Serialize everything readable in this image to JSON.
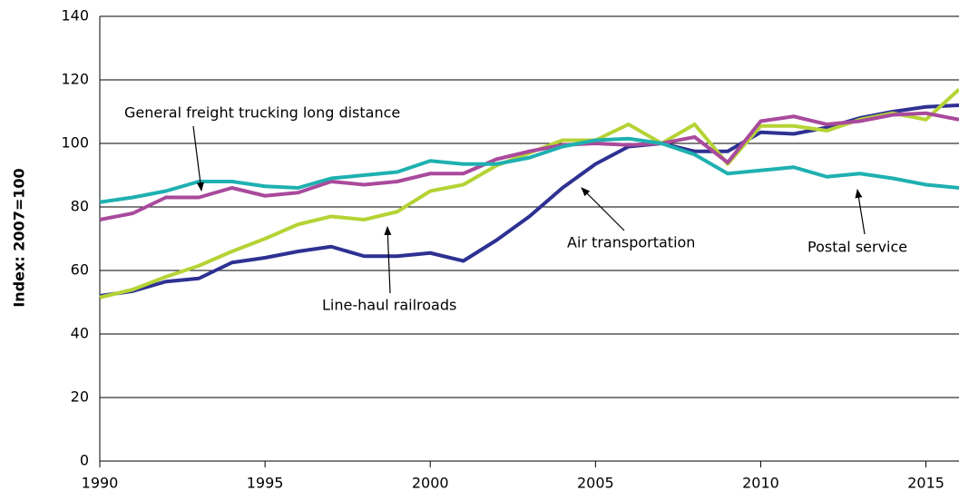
{
  "chart_data": {
    "type": "line",
    "y_label": "Index:  2007=100",
    "x": [
      1990,
      1991,
      1992,
      1993,
      1994,
      1995,
      1996,
      1997,
      1998,
      1999,
      2000,
      2001,
      2002,
      2003,
      2004,
      2005,
      2006,
      2007,
      2008,
      2009,
      2010,
      2011,
      2012,
      2013,
      2014,
      2015,
      2016
    ],
    "series": [
      {
        "name": "Air transportation",
        "color": "#2e3192",
        "values": [
          52,
          53.5,
          56.5,
          57.5,
          62.5,
          64,
          66,
          67.5,
          64.5,
          64.5,
          65.5,
          63,
          69.5,
          77,
          86,
          93.5,
          99,
          100,
          97.5,
          97.5,
          103.5,
          103,
          105,
          108,
          110,
          111.5,
          112
        ]
      },
      {
        "name": "Line-haul railroads",
        "color": "#b5d335",
        "values": [
          51.5,
          54,
          58,
          61.5,
          66,
          70,
          74.5,
          77,
          76,
          78.5,
          85,
          87,
          93,
          97,
          101,
          101,
          106,
          100,
          106,
          93.5,
          105.5,
          105.5,
          104,
          107.5,
          109.5,
          107.5,
          117
        ]
      },
      {
        "name": "General freight trucking long distance",
        "color": "#a94a9c",
        "values": [
          76,
          78,
          83,
          83,
          86,
          83.5,
          84.5,
          88,
          87,
          88,
          90.5,
          90.5,
          95,
          97.5,
          99.5,
          100,
          99.5,
          100,
          102,
          94,
          107,
          108.5,
          106,
          107,
          109,
          109.5,
          107.5
        ]
      },
      {
        "name": "Postal service",
        "color": "#1fb0b0",
        "values": [
          81.5,
          83,
          85,
          88,
          88,
          86.5,
          86,
          89,
          90,
          91,
          94.5,
          93.5,
          93.5,
          95.5,
          99,
          101,
          101.5,
          100,
          96.5,
          90.5,
          91.5,
          92.5,
          89.5,
          90.5,
          89,
          87,
          86
        ]
      }
    ],
    "xlim": [
      1990,
      2016
    ],
    "xticks": [
      1990,
      1995,
      2000,
      2005,
      2010,
      2015
    ],
    "ylim": [
      0,
      140
    ],
    "yticks": [
      0,
      20,
      40,
      60,
      80,
      100,
      120,
      140
    ],
    "grid": true
  }
}
